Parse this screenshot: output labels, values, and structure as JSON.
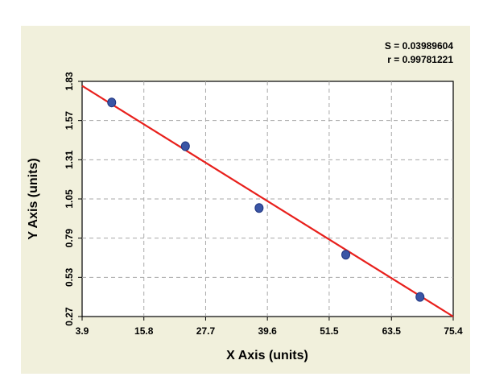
{
  "chart_data": {
    "type": "scatter",
    "xlabel": "X Axis (units)",
    "ylabel": "Y Axis (units)",
    "xlim": [
      3.9,
      75.4
    ],
    "ylim": [
      0.27,
      1.83
    ],
    "xticks": [
      "3.9",
      "15.8",
      "27.7",
      "39.6",
      "51.5",
      "63.5",
      "75.4"
    ],
    "yticks": [
      "0.27",
      "0.53",
      "0.79",
      "1.05",
      "1.31",
      "1.57",
      "1.83"
    ],
    "grid": true,
    "annotations": [
      "S = 0.03989604",
      "r = 0.99781221"
    ],
    "series": [
      {
        "values": [
          {
            "x": 9.6,
            "y": 1.69
          },
          {
            "x": 23.8,
            "y": 1.4
          },
          {
            "x": 38.0,
            "y": 0.99
          },
          {
            "x": 54.7,
            "y": 0.68
          },
          {
            "x": 69.0,
            "y": 0.4
          }
        ]
      }
    ],
    "fit_line": {
      "x": [
        3.9,
        75.4
      ],
      "y": [
        1.8,
        0.27
      ]
    },
    "colors": {
      "panel_bg": "#f1f0dc",
      "plot_bg": "#ffffff",
      "grid": "#a8a8a8",
      "fit_line": "#e8201c",
      "marker": "#3a55a5",
      "marker_edge": "#1f3580"
    }
  }
}
